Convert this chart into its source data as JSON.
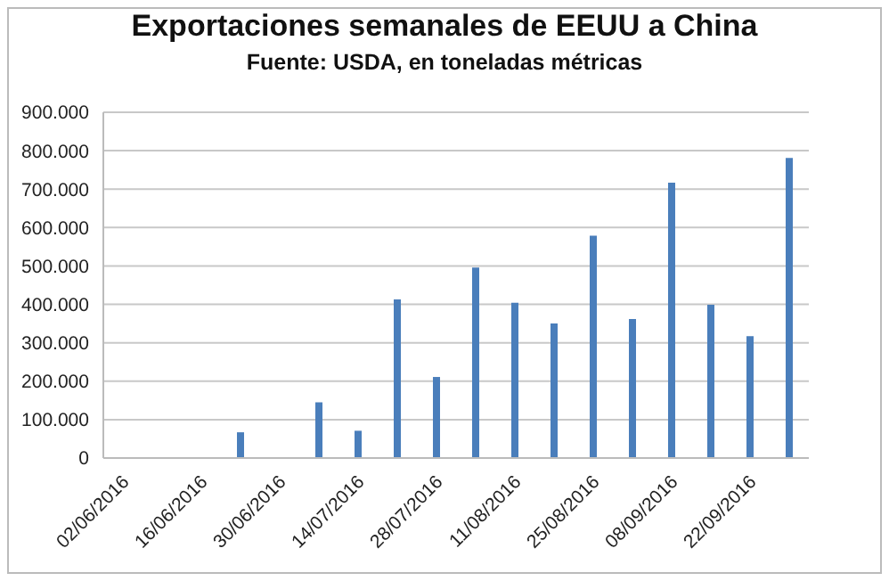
{
  "chart_data": {
    "type": "bar",
    "title": "Exportaciones semanales de EEUU a China",
    "subtitle": "Fuente: USDA, en toneladas métricas",
    "categories": [
      "02/06/2016",
      null,
      "16/06/2016",
      null,
      "30/06/2016",
      null,
      "14/07/2016",
      null,
      "28/07/2016",
      null,
      "11/08/2016",
      null,
      "25/08/2016",
      null,
      "08/09/2016",
      null,
      "22/09/2016",
      null
    ],
    "values": [
      null,
      null,
      null,
      67000,
      null,
      145000,
      71000,
      413000,
      211000,
      496000,
      404000,
      350000,
      579000,
      362000,
      717000,
      399000,
      317000,
      781000
    ],
    "color": "#4a7ebb",
    "ylim": [
      0,
      900000
    ],
    "yticks": [
      0,
      {
        "value": 100000,
        "label": "100.000"
      },
      {
        "value": 200000,
        "label": "200.000"
      },
      {
        "value": 300000,
        "label": "300.000"
      },
      {
        "value": 400000,
        "label": "400.000"
      },
      {
        "value": 500000,
        "label": "500.000"
      },
      {
        "value": 600000,
        "label": "600.000"
      },
      {
        "value": 700000,
        "label": "700.000"
      },
      {
        "value": 800000,
        "label": "800.000"
      },
      {
        "value": 900000,
        "label": "900.000"
      }
    ],
    "grid": "y"
  }
}
